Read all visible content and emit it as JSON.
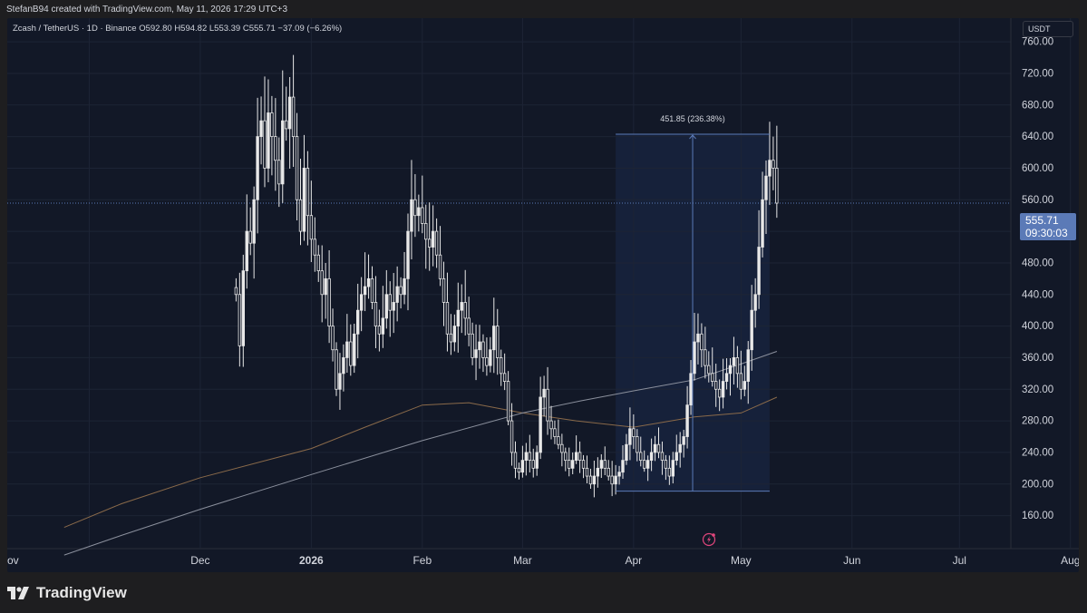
{
  "header": {
    "attribution": "StefanB94 created with TradingView.com, May 11, 2026 17:29 UTC+3"
  },
  "legend": {
    "symbol": "Zcash / TetherUS · 1D · Binance",
    "open": "O592.80",
    "high": "H594.82",
    "low": "L553.39",
    "close": "C555.71",
    "change": "−37.09 (−6.26%)"
  },
  "currency_button": "USDT",
  "price_tag": {
    "price": "555.71",
    "countdown": "09:30:03"
  },
  "brand": {
    "name": "TradingView"
  },
  "colors": {
    "background": "#121827",
    "candle": "#e8e8e8",
    "grid": "#1d2435",
    "ma_short": "#8a8f9c",
    "ma_long": "#8a6a4a",
    "measure": "#5b7ab7",
    "price_line": "#5b7ab7"
  },
  "chart_data": {
    "type": "candlestick",
    "ylim": [
      140,
      790
    ],
    "y_ticks": [
      "760.00",
      "720.00",
      "680.00",
      "640.00",
      "600.00",
      "560.00",
      "520.00",
      "480.00",
      "440.00",
      "400.00",
      "360.00",
      "320.00",
      "280.00",
      "240.00",
      "200.00",
      "160.00"
    ],
    "x_ticks": [
      "ov",
      "Dec",
      "2026",
      "Feb",
      "Mar",
      "Apr",
      "May",
      "Jun",
      "Jul",
      "Aug"
    ],
    "x_tick_days": [
      -9,
      22,
      53,
      84,
      112,
      143,
      173,
      204,
      234,
      265
    ],
    "last_day": 183,
    "current_price": 555.71,
    "measure": {
      "label": "451.85 (236.38%)",
      "low": 191,
      "high": 643,
      "start_day": 138,
      "end_day": 181
    },
    "ma_short": [
      [
        -16,
        110
      ],
      [
        0,
        135
      ],
      [
        22,
        168
      ],
      [
        53,
        212
      ],
      [
        84,
        255
      ],
      [
        112,
        290
      ],
      [
        128,
        305
      ],
      [
        143,
        318
      ],
      [
        160,
        332
      ],
      [
        173,
        352
      ],
      [
        183,
        368
      ]
    ],
    "ma_long": [
      [
        -16,
        145
      ],
      [
        0,
        175
      ],
      [
        22,
        208
      ],
      [
        53,
        245
      ],
      [
        68,
        272
      ],
      [
        84,
        300
      ],
      [
        97,
        303
      ],
      [
        112,
        290
      ],
      [
        127,
        280
      ],
      [
        143,
        272
      ],
      [
        160,
        285
      ],
      [
        173,
        290
      ],
      [
        183,
        310
      ]
    ],
    "closes": [
      440,
      375,
      470,
      520,
      505,
      560,
      640,
      660,
      600,
      670,
      640,
      610,
      580,
      660,
      650,
      690,
      640,
      560,
      520,
      600,
      540,
      510,
      490,
      470,
      440,
      460,
      400,
      370,
      320,
      340,
      360,
      380,
      350,
      390,
      420,
      440,
      450,
      460,
      430,
      400,
      390,
      410,
      440,
      420,
      430,
      450,
      440,
      460,
      520,
      560,
      540,
      550,
      530,
      510,
      500,
      520,
      490,
      460,
      430,
      390,
      380,
      400,
      420,
      430,
      410,
      390,
      360,
      370,
      380,
      360,
      350,
      370,
      400,
      360,
      340,
      330,
      280,
      240,
      220,
      215,
      230,
      240,
      230,
      220,
      240,
      310,
      320,
      280,
      270,
      260,
      250,
      240,
      230,
      220,
      230,
      240,
      230,
      220,
      210,
      200,
      210,
      220,
      230,
      220,
      210,
      200,
      210,
      215,
      230,
      250,
      270,
      260,
      240,
      230,
      220,
      230,
      240,
      250,
      240,
      230,
      220,
      210,
      230,
      240,
      250,
      260,
      300,
      340,
      380,
      390,
      370,
      350,
      340,
      330,
      320,
      310,
      330,
      340,
      350,
      360,
      340,
      320,
      330,
      370,
      420,
      440,
      500,
      560,
      590,
      610,
      600,
      555.71
    ]
  }
}
